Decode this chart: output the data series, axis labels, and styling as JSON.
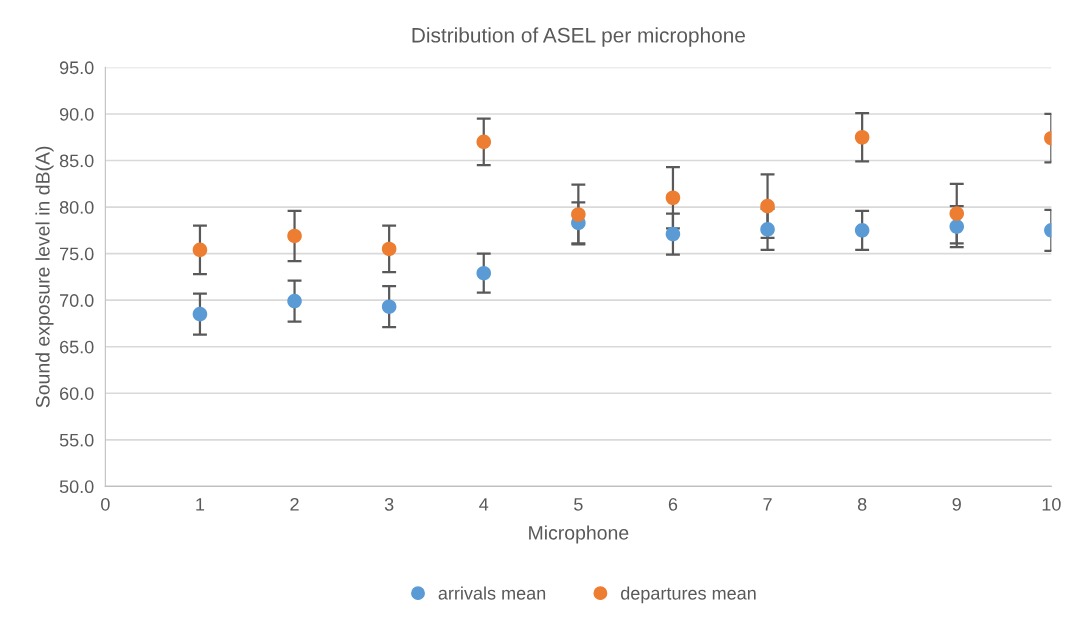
{
  "chart_data": {
    "type": "scatter",
    "title": "Distribution of ASEL per microphone",
    "xlabel": "Microphone",
    "ylabel": "Sound exposure level in dB(A)",
    "x": [
      1,
      2,
      3,
      4,
      5,
      6,
      7,
      8,
      9,
      10
    ],
    "series": [
      {
        "name": "arrivals mean",
        "color": "#5b9bd5",
        "values": [
          68.5,
          69.9,
          69.3,
          72.9,
          78.3,
          77.1,
          77.6,
          77.5,
          77.9,
          77.5
        ],
        "errors": [
          2.2,
          2.2,
          2.2,
          2.1,
          2.2,
          2.2,
          2.2,
          2.1,
          2.2,
          2.2
        ]
      },
      {
        "name": "departures mean",
        "color": "#ed7d31",
        "values": [
          75.4,
          76.9,
          75.5,
          87.0,
          79.2,
          81.0,
          80.1,
          87.5,
          79.3,
          87.4
        ],
        "errors": [
          2.6,
          2.7,
          2.5,
          2.5,
          3.2,
          3.3,
          3.4,
          2.6,
          3.2,
          2.6
        ]
      }
    ],
    "xlim": [
      0,
      10
    ],
    "xticks": [
      0,
      1,
      2,
      3,
      4,
      5,
      6,
      7,
      8,
      9,
      10
    ],
    "ylim": [
      50,
      95
    ],
    "yticks": [
      {
        "value": 50,
        "label": "50.0"
      },
      {
        "value": 55,
        "label": "55.0"
      },
      {
        "value": 60,
        "label": "60.0"
      },
      {
        "value": 65,
        "label": "65.0"
      },
      {
        "value": 70,
        "label": "70.0"
      },
      {
        "value": 75,
        "label": "75.0"
      },
      {
        "value": 80,
        "label": "80.0"
      },
      {
        "value": 85,
        "label": "85.0"
      },
      {
        "value": 90,
        "label": "90.0"
      },
      {
        "value": 95,
        "label": "95.0"
      }
    ],
    "grid": "y",
    "legend": "bottom",
    "marker": "circle"
  }
}
